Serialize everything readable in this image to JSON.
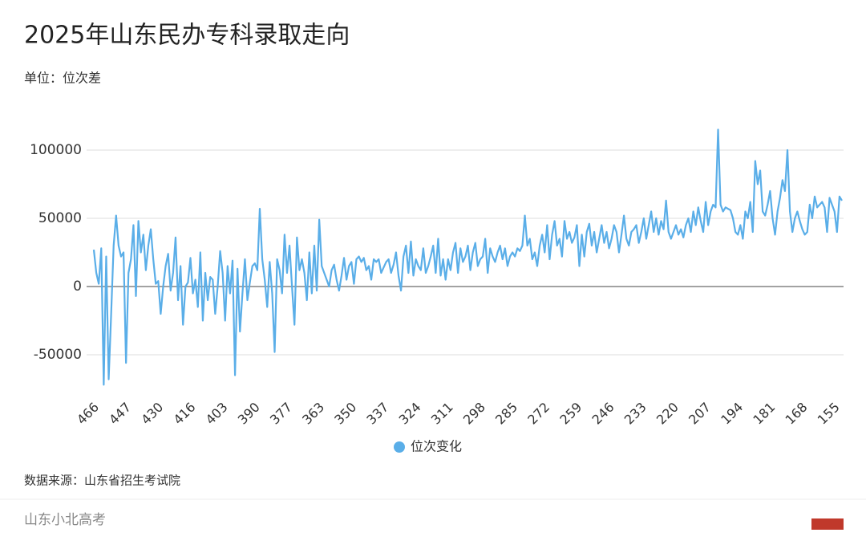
{
  "chart_data": {
    "type": "line",
    "title": "2025年山东民办专科录取走向",
    "subtitle": "单位：位次差",
    "source": "数据来源：山东省招生考试院",
    "footer": "山东小北高考",
    "categories": [
      "466",
      null,
      null,
      null,
      null,
      null,
      null,
      null,
      null,
      null,
      null,
      null,
      null,
      "447",
      null,
      null,
      null,
      null,
      null,
      null,
      null,
      null,
      null,
      null,
      null,
      null,
      "430",
      null,
      null,
      null,
      null,
      null,
      null,
      null,
      null,
      null,
      null,
      null,
      null,
      "416",
      null,
      null,
      null,
      null,
      null,
      null,
      null,
      null,
      null,
      null,
      null,
      null,
      "403",
      null,
      null,
      null,
      null,
      null,
      null,
      null,
      null,
      null,
      null,
      null,
      null,
      "390",
      null,
      null,
      null,
      null,
      null,
      null,
      null,
      null,
      null,
      null,
      null,
      null,
      "377",
      null,
      null,
      null,
      null,
      null,
      null,
      null,
      null,
      null,
      null,
      null,
      null,
      "363",
      null,
      null,
      null,
      null,
      null,
      null,
      null,
      null,
      null,
      null,
      null,
      null,
      "350",
      null,
      null,
      null,
      null,
      null,
      null,
      null,
      null,
      null,
      null,
      null,
      null,
      "337",
      null,
      null,
      null,
      null,
      null,
      null,
      null,
      null,
      null,
      null,
      null,
      null,
      "324",
      null,
      null,
      null,
      null,
      null,
      null,
      null,
      null,
      null,
      null,
      null,
      null,
      "311",
      null,
      null,
      null,
      null,
      null,
      null,
      null,
      null,
      null,
      null,
      null,
      null,
      "298",
      null,
      null,
      null,
      null,
      null,
      null,
      null,
      null,
      null,
      null,
      null,
      null,
      "285",
      null,
      null,
      null,
      null,
      null,
      null,
      null,
      null,
      null,
      null,
      null,
      null,
      "272",
      null,
      null,
      null,
      null,
      null,
      null,
      null,
      null,
      null,
      null,
      null,
      null,
      "259",
      null,
      null,
      null,
      null,
      null,
      null,
      null,
      null,
      null,
      null,
      null,
      null,
      "246",
      null,
      null,
      null,
      null,
      null,
      null,
      null,
      null,
      null,
      null,
      null,
      null,
      "233",
      null,
      null,
      null,
      null,
      null,
      null,
      null,
      null,
      null,
      null,
      null,
      null,
      "220",
      null,
      null,
      null,
      null,
      null,
      null,
      null,
      null,
      null,
      null,
      null,
      null,
      "207",
      null,
      null,
      null,
      null,
      null,
      null,
      null,
      null,
      null,
      null,
      null,
      null,
      "194",
      null,
      null,
      null,
      null,
      null,
      null,
      null,
      null,
      null,
      null,
      null,
      null,
      "181",
      null,
      null,
      null,
      null,
      null,
      null,
      null,
      null,
      null,
      null,
      null,
      null,
      "168",
      null,
      null,
      null,
      null,
      null,
      null,
      null,
      null,
      null,
      null,
      null,
      null,
      "155",
      null,
      null,
      null
    ],
    "series": [
      {
        "name": "位次变化",
        "color": "#5aaee8",
        "values": [
          27000,
          10000,
          2000,
          28000,
          -72000,
          22000,
          -68000,
          -20000,
          30000,
          52000,
          30000,
          22000,
          25000,
          -56000,
          10000,
          20000,
          45000,
          -7000,
          48000,
          25000,
          38000,
          12000,
          30000,
          42000,
          20000,
          2000,
          4000,
          -20000,
          0,
          15000,
          24000,
          -3000,
          10000,
          36000,
          -10000,
          15000,
          -28000,
          0,
          3000,
          21000,
          -5000,
          5000,
          -15000,
          25000,
          -25000,
          10000,
          -10000,
          7000,
          5000,
          -20000,
          0,
          26000,
          10000,
          -25000,
          15000,
          -5000,
          19000,
          -65000,
          13000,
          -33000,
          -5000,
          20000,
          -10000,
          3000,
          15000,
          17000,
          12000,
          57000,
          20000,
          5000,
          -15000,
          18000,
          -5000,
          -48000,
          20000,
          12000,
          -5000,
          38000,
          10000,
          30000,
          0,
          -28000,
          36000,
          12000,
          20000,
          10000,
          -10000,
          25000,
          -5000,
          30000,
          -3000,
          49000,
          15000,
          10000,
          5000,
          0,
          12000,
          16000,
          5000,
          -3000,
          8000,
          21000,
          5000,
          15000,
          18000,
          2000,
          20000,
          22000,
          18000,
          21000,
          12000,
          15000,
          5000,
          20000,
          18000,
          20000,
          10000,
          14000,
          18000,
          20000,
          10000,
          16000,
          25000,
          8000,
          -3000,
          22000,
          30000,
          10000,
          33000,
          8000,
          20000,
          15000,
          12000,
          28000,
          10000,
          15000,
          22000,
          30000,
          10000,
          35000,
          8000,
          20000,
          5000,
          20000,
          12000,
          25000,
          32000,
          10000,
          28000,
          18000,
          22000,
          30000,
          12000,
          25000,
          32000,
          15000,
          20000,
          22000,
          35000,
          10000,
          28000,
          22000,
          18000,
          25000,
          30000,
          20000,
          28000,
          15000,
          22000,
          25000,
          22000,
          28000,
          26000,
          30000,
          52000,
          30000,
          35000,
          20000,
          25000,
          15000,
          30000,
          38000,
          25000,
          45000,
          20000,
          38000,
          48000,
          30000,
          35000,
          22000,
          48000,
          35000,
          40000,
          32000,
          36000,
          45000,
          15000,
          38000,
          22000,
          40000,
          46000,
          30000,
          40000,
          25000,
          35000,
          45000,
          32000,
          40000,
          28000,
          35000,
          45000,
          40000,
          25000,
          38000,
          52000,
          35000,
          30000,
          40000,
          42000,
          45000,
          32000,
          40000,
          50000,
          35000,
          45000,
          55000,
          40000,
          50000,
          38000,
          48000,
          42000,
          63000,
          40000,
          35000,
          40000,
          45000,
          38000,
          42000,
          36000,
          45000,
          50000,
          40000,
          55000,
          45000,
          58000,
          48000,
          40000,
          62000,
          45000,
          55000,
          60000,
          58000,
          115000,
          60000,
          55000,
          58000,
          57000,
          56000,
          50000,
          40000,
          38000,
          45000,
          35000,
          55000,
          50000,
          62000,
          40000,
          92000,
          75000,
          85000,
          55000,
          52000,
          60000,
          70000,
          50000,
          38000,
          55000,
          65000,
          78000,
          70000,
          100000,
          55000,
          40000,
          50000,
          55000,
          48000,
          42000,
          38000,
          40000,
          60000,
          50000,
          66000,
          58000,
          60000,
          62000,
          58000,
          40000,
          65000,
          60000,
          55000,
          40000,
          66000,
          63000
        ]
      }
    ],
    "ylim": [
      -75000,
      120000
    ],
    "yticks": [
      -50000,
      0,
      50000,
      100000
    ],
    "grid": true
  }
}
